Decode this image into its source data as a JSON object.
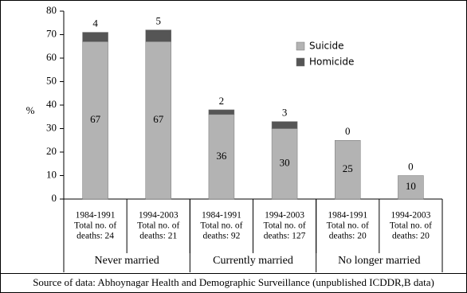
{
  "chart_data": {
    "type": "stacked_bar",
    "y_label": "%",
    "categories": [
      [
        "1984-1991",
        "Total no. of",
        "deaths: 24"
      ],
      [
        "1994-2003",
        "Total no. of",
        "deaths: 21"
      ],
      [
        "1984-1991",
        "Total no. of",
        "deaths: 92"
      ],
      [
        "1994-2003",
        "Total no. of",
        "deaths: 127"
      ],
      [
        "1984-1991",
        "Total no. of",
        "deaths: 20"
      ],
      [
        "1994-2003",
        "Total no. of",
        "deaths: 20"
      ]
    ],
    "groups": [
      {
        "name": "Never married",
        "categories": [
          0,
          1
        ]
      },
      {
        "name": "Currently married",
        "categories": [
          2,
          3
        ]
      },
      {
        "name": "No longer married",
        "categories": [
          4,
          5
        ]
      }
    ],
    "series": [
      {
        "name": "Suicide",
        "color": "#b3b3b3",
        "values": [
          67,
          67,
          36,
          30,
          25,
          10
        ]
      },
      {
        "name": "Homicide",
        "color": "#555555",
        "values": [
          4,
          5,
          2,
          3,
          0,
          0
        ]
      }
    ],
    "ylim": [
      0,
      80
    ],
    "yticks": [
      0,
      10,
      20,
      30,
      40,
      50,
      60,
      70,
      80
    ],
    "source": "Source of data: Abhoynagar Health and Demographic Surveillance (unpublished ICDDR,B data)"
  }
}
